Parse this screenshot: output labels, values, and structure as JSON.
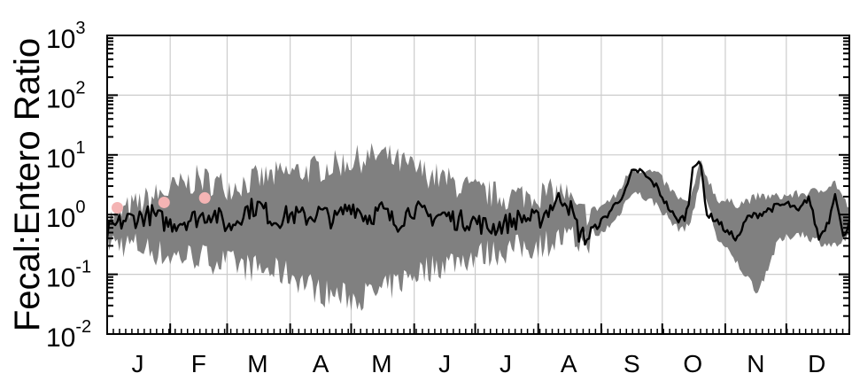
{
  "chart_data": {
    "type": "line",
    "title": "",
    "xlabel": "",
    "ylabel": "Fecal:Entero Ratio",
    "yscale": "log",
    "ylim": [
      0.01,
      1000
    ],
    "xlim": [
      0,
      365
    ],
    "grid": true,
    "legend": "none",
    "x_ticks": [
      {
        "label": "J",
        "day": 15
      },
      {
        "label": "F",
        "day": 45
      },
      {
        "label": "M",
        "day": 74
      },
      {
        "label": "A",
        "day": 105
      },
      {
        "label": "M",
        "day": 135
      },
      {
        "label": "J",
        "day": 166
      },
      {
        "label": "J",
        "day": 196
      },
      {
        "label": "A",
        "day": 227
      },
      {
        "label": "S",
        "day": 258
      },
      {
        "label": "O",
        "day": 288
      },
      {
        "label": "N",
        "day": 319
      },
      {
        "label": "D",
        "day": 349
      }
    ],
    "y_ticks": [
      {
        "base": "10",
        "exp": "-2",
        "value": 0.01
      },
      {
        "base": "10",
        "exp": "-1",
        "value": 0.1
      },
      {
        "base": "10",
        "exp": "0",
        "value": 1
      },
      {
        "base": "10",
        "exp": "1",
        "value": 10
      },
      {
        "base": "10",
        "exp": "2",
        "value": 100
      },
      {
        "base": "10",
        "exp": "3",
        "value": 1000
      }
    ],
    "colors": {
      "line": "#000000",
      "band": "#808080",
      "points": "#f4b4b4",
      "grid": "#cccccc"
    },
    "band_description": "gray band is spread across years; black line is median",
    "median_keypoints": {
      "day": [
        0,
        8,
        15,
        22,
        30,
        38,
        45,
        52,
        60,
        68,
        75,
        82,
        90,
        98,
        105,
        112,
        120,
        128,
        135,
        142,
        150,
        158,
        165,
        172,
        180,
        188,
        196,
        204,
        212,
        220,
        225,
        228,
        232,
        236,
        240,
        245,
        250,
        255,
        258,
        262,
        266,
        270,
        275,
        280,
        284,
        286,
        288,
        290,
        292,
        295,
        300,
        305,
        310,
        315,
        320,
        325,
        330,
        335,
        340,
        345,
        350,
        355,
        358,
        362,
        365
      ],
      "value": [
        0.5,
        0.8,
        0.9,
        1.0,
        0.7,
        0.8,
        0.9,
        1.1,
        0.6,
        1.2,
        1.4,
        0.8,
        1.0,
        0.9,
        1.1,
        0.8,
        1.5,
        0.9,
        1.2,
        0.7,
        1.3,
        0.9,
        1.0,
        0.8,
        0.8,
        0.6,
        0.7,
        0.9,
        0.8,
        1.6,
        2.0,
        1.2,
        0.5,
        0.4,
        0.6,
        0.9,
        1.5,
        2.5,
        5.0,
        5.5,
        4.0,
        3.0,
        1.5,
        0.8,
        0.9,
        1.5,
        7.0,
        7.0,
        6.5,
        1.0,
        0.8,
        0.5,
        0.4,
        0.9,
        1.0,
        1.2,
        1.4,
        1.5,
        1.1,
        2.0,
        0.4,
        0.8,
        2.5,
        0.4,
        0.8
      ]
    },
    "band_keypoints": {
      "day": [
        0,
        15,
        30,
        45,
        60,
        75,
        90,
        105,
        120,
        135,
        150,
        165,
        180,
        195,
        210,
        225,
        232,
        240,
        250,
        258,
        270,
        280,
        286,
        292,
        300,
        310,
        320,
        330,
        340,
        350,
        358,
        365
      ],
      "low": [
        0.35,
        0.3,
        0.2,
        0.2,
        0.15,
        0.12,
        0.1,
        0.05,
        0.04,
        0.05,
        0.1,
        0.15,
        0.2,
        0.25,
        0.3,
        0.4,
        0.35,
        0.4,
        0.8,
        2.5,
        1.5,
        0.6,
        0.6,
        4.0,
        0.4,
        0.15,
        0.05,
        0.35,
        0.5,
        0.35,
        0.3,
        0.4
      ],
      "high": [
        0.8,
        1.5,
        2.5,
        4.0,
        3.0,
        4.0,
        5.0,
        6.0,
        8.0,
        10.0,
        6.0,
        4.0,
        2.5,
        2.0,
        2.2,
        2.4,
        1.0,
        1.2,
        2.0,
        6.0,
        5.0,
        2.0,
        1.5,
        7.5,
        1.8,
        1.5,
        2.0,
        2.0,
        2.2,
        2.5,
        3.5,
        1.2
      ]
    },
    "highlight_points": [
      {
        "day": 5,
        "value": 1.3
      },
      {
        "day": 28,
        "value": 1.6
      },
      {
        "day": 48,
        "value": 1.9
      }
    ]
  }
}
